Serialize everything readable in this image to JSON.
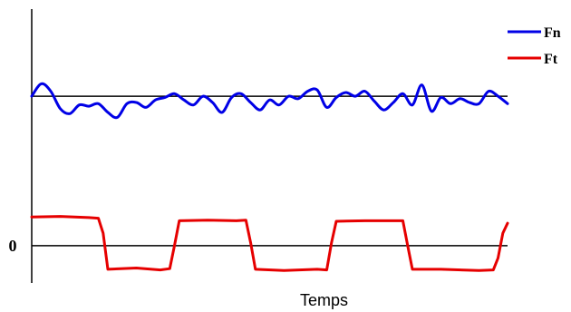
{
  "chart_data": {
    "type": "line",
    "title": "",
    "xlabel": "Temps",
    "ylabel": "",
    "y_tick_labels": [
      "0"
    ],
    "grid": false,
    "legend_position": "top-right",
    "reference_lines": [
      {
        "y": 0,
        "label": "0"
      },
      {
        "y": 2.4
      }
    ],
    "xlim": [
      0,
      1
    ],
    "ylim": [
      -0.6,
      3.8
    ],
    "series": [
      {
        "name": "Fn",
        "color": "#0000e6",
        "x": [
          0.0,
          0.02,
          0.04,
          0.06,
          0.08,
          0.1,
          0.12,
          0.14,
          0.16,
          0.18,
          0.2,
          0.22,
          0.24,
          0.26,
          0.28,
          0.3,
          0.32,
          0.34,
          0.36,
          0.38,
          0.4,
          0.42,
          0.44,
          0.46,
          0.48,
          0.5,
          0.52,
          0.54,
          0.56,
          0.58,
          0.6,
          0.62,
          0.64,
          0.66,
          0.68,
          0.7,
          0.72,
          0.74,
          0.76,
          0.78,
          0.8,
          0.82,
          0.84,
          0.86,
          0.88,
          0.9,
          0.92,
          0.94,
          0.96,
          0.98,
          1.0
        ],
        "values": [
          2.4,
          2.6,
          2.48,
          2.2,
          2.12,
          2.26,
          2.24,
          2.28,
          2.14,
          2.06,
          2.28,
          2.3,
          2.22,
          2.34,
          2.38,
          2.44,
          2.34,
          2.26,
          2.4,
          2.3,
          2.14,
          2.38,
          2.44,
          2.3,
          2.18,
          2.34,
          2.26,
          2.4,
          2.36,
          2.48,
          2.5,
          2.22,
          2.38,
          2.46,
          2.4,
          2.48,
          2.32,
          2.18,
          2.3,
          2.44,
          2.26,
          2.58,
          2.16,
          2.38,
          2.28,
          2.36,
          2.3,
          2.28,
          2.48,
          2.4,
          2.28
        ]
      },
      {
        "name": "Ft",
        "color": "#e60000",
        "x": [
          0.0,
          0.06,
          0.12,
          0.14,
          0.15,
          0.16,
          0.22,
          0.27,
          0.29,
          0.3,
          0.31,
          0.37,
          0.43,
          0.45,
          0.46,
          0.47,
          0.53,
          0.6,
          0.62,
          0.63,
          0.64,
          0.7,
          0.76,
          0.78,
          0.79,
          0.8,
          0.86,
          0.94,
          0.97,
          0.98,
          0.99,
          1.0
        ],
        "values": [
          0.46,
          0.47,
          0.45,
          0.44,
          0.2,
          -0.38,
          -0.36,
          -0.39,
          -0.37,
          0.0,
          0.4,
          0.41,
          0.4,
          0.41,
          0.05,
          -0.38,
          -0.4,
          -0.38,
          -0.39,
          0.05,
          0.39,
          0.4,
          0.4,
          0.4,
          0.0,
          -0.38,
          -0.38,
          -0.4,
          -0.39,
          -0.2,
          0.2,
          0.36
        ]
      }
    ]
  }
}
